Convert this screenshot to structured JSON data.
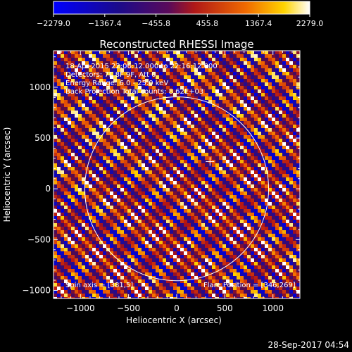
{
  "chart_data": {
    "type": "heatmap",
    "title": "Reconstructed RHESSI Image",
    "xlabel": "Heliocentric X (arcsec)",
    "ylabel": "Heliocentric Y (arcsec)",
    "xlim": [
      -1280,
      1280
    ],
    "ylim": [
      -1080,
      1360
    ],
    "xticks": [
      -1000,
      -500,
      0,
      500,
      1000
    ],
    "xtick_labels": [
      "−1000",
      "−500",
      "0",
      "500",
      "1000"
    ],
    "yticks": [
      -1000,
      -500,
      0,
      500,
      1000
    ],
    "ytick_labels": [
      "−1000",
      "−500",
      "0",
      "500",
      "1000"
    ],
    "colorbar": {
      "min": -2279.0,
      "max": 2279.0,
      "ticks": [
        -2279.0,
        -1367.4,
        -455.8,
        455.8,
        1367.4,
        2279.0
      ],
      "tick_labels": [
        "−2279.0",
        "−1367.4",
        "−455.8",
        "455.8",
        "1367.4",
        "2279.0"
      ]
    },
    "solar_limb_radius_arcsec": 955,
    "flare_marker": [
      346,
      269
    ],
    "annotations": {
      "time": "18-Apr-2015 22:06:12.000 to 22:16:12.000",
      "detectors": "Detectors: 7F 8F 9F, Att 0",
      "energy": "Energy Range: 6.0 - 25.0 keV",
      "method": "Back Projection    Total counts: 8.62E+03",
      "spin_axis": "Spin axis = [381,5]",
      "flare_position": "Flare Position = [346,269]"
    },
    "grid": false
  },
  "footer": {
    "timestamp": "28-Sep-2017 04:54"
  }
}
